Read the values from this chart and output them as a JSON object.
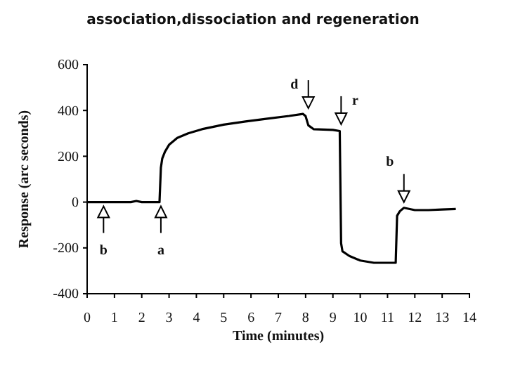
{
  "chart_data": {
    "type": "line",
    "title": "association,dissociation and regeneration",
    "xlabel": "Time (minutes)",
    "ylabel": "Response (arc seconds)",
    "xlim": [
      0,
      14
    ],
    "xticks": [
      0,
      1,
      2,
      3,
      4,
      5,
      6,
      7,
      8,
      9,
      10,
      11,
      12,
      13,
      14
    ],
    "ylim": [
      -400,
      600
    ],
    "yticks": [
      -400,
      -200,
      0,
      200,
      400,
      600
    ],
    "series": [
      {
        "color": "#000000",
        "x": [
          0,
          1,
          1.6,
          1.8,
          2,
          2.65,
          2.7,
          2.75,
          2.85,
          3,
          3.3,
          3.7,
          4.2,
          5,
          5.8,
          6.6,
          7.4,
          7.9,
          8.0,
          8.1,
          8.3,
          9.0,
          9.25,
          9.3,
          9.35,
          9.6,
          10,
          10.5,
          11.3,
          11.35,
          11.45,
          11.6,
          12,
          12.5,
          13,
          13.5
        ],
        "values": [
          0,
          0,
          0,
          5,
          0,
          0,
          150,
          190,
          220,
          250,
          280,
          300,
          318,
          338,
          352,
          364,
          376,
          385,
          375,
          335,
          318,
          315,
          310,
          -180,
          -215,
          -235,
          -255,
          -265,
          -265,
          -60,
          -40,
          -25,
          -35,
          -35,
          -32,
          -30
        ]
      }
    ],
    "annotations": [
      {
        "text": "b",
        "x": 0.6,
        "y": 0
      },
      {
        "text": "a",
        "x": 2.7,
        "y": 0
      },
      {
        "text": "d",
        "x": 8.1,
        "y": 385
      },
      {
        "text": "r",
        "x": 9.3,
        "y": 315
      },
      {
        "text": "b",
        "x": 11.6,
        "y": -25
      }
    ],
    "line_style": "solid",
    "marker": "none"
  }
}
